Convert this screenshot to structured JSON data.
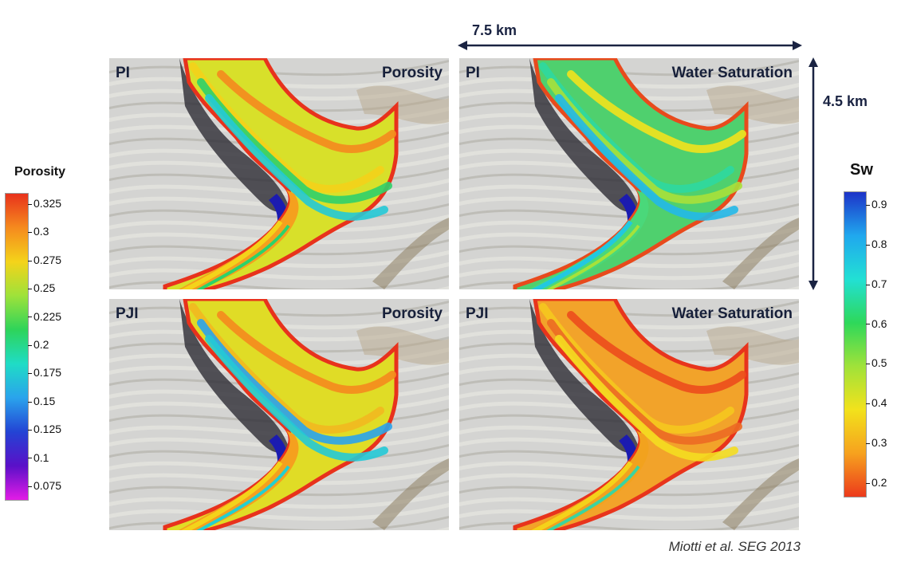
{
  "panels": [
    {
      "tag": "PI",
      "property": "Porosity"
    },
    {
      "tag": "PI",
      "property": "Water Saturation"
    },
    {
      "tag": "PJI",
      "property": "Porosity"
    },
    {
      "tag": "PJI",
      "property": "Water Saturation"
    }
  ],
  "scale": {
    "horizontal": "7.5 km",
    "vertical": "4.5 km"
  },
  "porosity_bar": {
    "title": "Porosity",
    "ticks": [
      "0.325",
      "0.3",
      "0.275",
      "0.25",
      "0.225",
      "0.2",
      "0.175",
      "0.15",
      "0.125",
      "0.1",
      "0.075"
    ],
    "colors": [
      "#e8321c",
      "#f58a1e",
      "#f4d31a",
      "#9ee23a",
      "#2ed45a",
      "#1fdcc6",
      "#2aa3ec",
      "#2343d4",
      "#5a10c8",
      "#e31ce6"
    ]
  },
  "sw_bar": {
    "title": "Sw",
    "ticks": [
      "0.9",
      "0.8",
      "0.7",
      "0.6",
      "0.5",
      "0.4",
      "0.3",
      "0.2"
    ],
    "colors": [
      "#1d33c8",
      "#20a8ee",
      "#22e0d4",
      "#2ed85a",
      "#9fe23a",
      "#f2e21c",
      "#f6a21e",
      "#ec3a1c"
    ]
  },
  "credit": "Miotti et al. SEG 2013"
}
